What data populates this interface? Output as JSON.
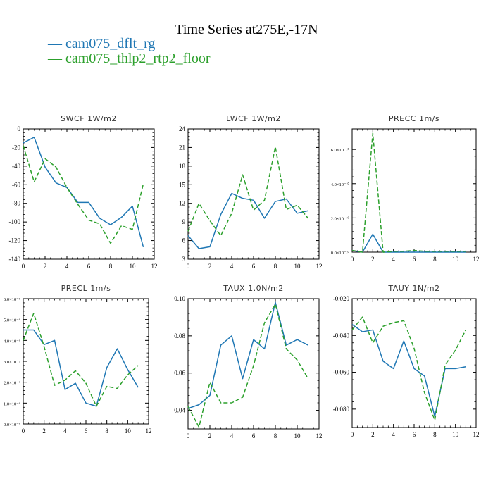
{
  "figure": {
    "title": "Time Series at275E,-17N",
    "legend": [
      {
        "label": "— cam075_dflt_rg",
        "color": "#1f77b4"
      },
      {
        "label": "— cam075_thlp2_rtp2_floor",
        "color": "#2ca02c"
      }
    ]
  },
  "chart_data": [
    {
      "type": "line",
      "title": "SWCF",
      "units": "1W/m2",
      "x": [
        0,
        1,
        2,
        3,
        4,
        5,
        6,
        7,
        8,
        9,
        10,
        11
      ],
      "xlim": [
        0,
        12
      ],
      "xticks": [
        0,
        2,
        4,
        6,
        8,
        10,
        12
      ],
      "ylim": [
        -140,
        0
      ],
      "yticks": [
        0,
        -20,
        -40,
        -60,
        -80,
        -100,
        -120,
        -140
      ],
      "ytick_labels": [
        "0",
        "-20",
        "-40",
        "-60",
        "-80",
        "-100",
        "-120",
        "-140"
      ],
      "series": [
        {
          "name": "cam075_dflt_rg",
          "color": "#1f77b4",
          "dash": "",
          "values": [
            -15,
            -9,
            -41,
            -58,
            -63,
            -79,
            -79,
            -96,
            -103,
            -95,
            -83,
            -127
          ]
        },
        {
          "name": "cam075_thlp2_rtp2_floor",
          "color": "#2ca02c",
          "dash": "6,3",
          "values": [
            -18,
            -57,
            -32,
            -41,
            -63,
            -81,
            -98,
            -102,
            -123,
            -104,
            -108,
            -59
          ]
        }
      ]
    },
    {
      "type": "line",
      "title": "LWCF",
      "units": "1W/m2",
      "x": [
        0,
        1,
        2,
        3,
        4,
        5,
        6,
        7,
        8,
        9,
        10,
        11
      ],
      "xlim": [
        0,
        12
      ],
      "xticks": [
        0,
        2,
        4,
        6,
        8,
        10,
        12
      ],
      "ylim": [
        3,
        24
      ],
      "yticks": [
        3,
        6,
        9,
        12,
        15,
        18,
        21,
        24
      ],
      "ytick_labels": [
        "3",
        "6",
        "9",
        "12",
        "15",
        "18",
        "21",
        "24"
      ],
      "series": [
        {
          "name": "cam075_dflt_rg",
          "color": "#1f77b4",
          "dash": "",
          "values": [
            6.8,
            4.7,
            5.0,
            10.2,
            13.6,
            12.8,
            12.5,
            9.6,
            12.3,
            12.7,
            10.4,
            10.8
          ]
        },
        {
          "name": "cam075_thlp2_rtp2_floor",
          "color": "#2ca02c",
          "dash": "6,3",
          "values": [
            7.5,
            12.0,
            9.2,
            6.8,
            10.4,
            16.6,
            10.9,
            12.5,
            21.1,
            11.0,
            11.7,
            9.6
          ]
        }
      ]
    },
    {
      "type": "line",
      "title": "PRECC",
      "units": "1m/s",
      "x": [
        0,
        1,
        2,
        3,
        4,
        5,
        6,
        7,
        8,
        9,
        10,
        11
      ],
      "xlim": [
        0,
        12
      ],
      "xticks": [
        0,
        2,
        4,
        6,
        8,
        10,
        12
      ],
      "ylim": [
        0,
        7.2e-10
      ],
      "yticks": [
        0,
        2e-10,
        4e-10,
        6e-10
      ],
      "ytick_labels": [
        "0.0×10⁻¹⁰",
        "2.0×10⁻¹⁰",
        "4.0×10⁻¹⁰",
        "6.0×10⁻¹⁰"
      ],
      "series": [
        {
          "name": "cam075_dflt_rg",
          "color": "#1f77b4",
          "dash": "",
          "values": [
            1e-11,
            0,
            1.05e-10,
            0,
            0,
            0,
            0,
            0,
            0,
            0,
            0,
            0
          ]
        },
        {
          "name": "cam075_thlp2_rtp2_floor",
          "color": "#2ca02c",
          "dash": "6,3",
          "values": [
            1e-11,
            0,
            6.95e-10,
            0,
            5e-12,
            5e-12,
            1e-11,
            5e-12,
            5e-12,
            5e-12,
            5e-12,
            5e-12
          ]
        }
      ]
    },
    {
      "type": "line",
      "title": "PRECL",
      "units": "1m/s",
      "x": [
        0,
        1,
        2,
        3,
        4,
        5,
        6,
        7,
        8,
        9,
        10,
        11
      ],
      "xlim": [
        0,
        12
      ],
      "xticks": [
        0,
        2,
        4,
        6,
        8,
        10,
        12
      ],
      "ylim": [
        0,
        6e-09
      ],
      "yticks": [
        0,
        1e-09,
        2e-09,
        3e-09,
        4e-09,
        5e-09,
        6e-09
      ],
      "ytick_labels": [
        "0.0×10⁻⁹",
        "1.0×10⁻⁹",
        "2.0×10⁻⁹",
        "3.0×10⁻⁹",
        "4.0×10⁻⁹",
        "5.0×10⁻⁹",
        "6.0×10⁻⁹"
      ],
      "series": [
        {
          "name": "cam075_dflt_rg",
          "color": "#1f77b4",
          "dash": "",
          "values": [
            4.5e-09,
            4.5e-09,
            3.8e-09,
            4e-09,
            1.65e-09,
            1.95e-09,
            1e-09,
            8.5e-10,
            2.7e-09,
            3.6e-09,
            2.6e-09,
            1.75e-09
          ]
        },
        {
          "name": "cam075_thlp2_rtp2_floor",
          "color": "#2ca02c",
          "dash": "6,3",
          "values": [
            4e-09,
            5.3e-09,
            3.7e-09,
            1.85e-09,
            2.1e-09,
            2.55e-09,
            1.95e-09,
            8.5e-10,
            1.8e-09,
            1.7e-09,
            2.35e-09,
            2.8e-09
          ]
        }
      ]
    },
    {
      "type": "line",
      "title": "TAUX",
      "units": "1.0N/m2",
      "x": [
        0,
        1,
        2,
        3,
        4,
        5,
        6,
        7,
        8,
        9,
        10,
        11
      ],
      "xlim": [
        0,
        12
      ],
      "xticks": [
        0,
        2,
        4,
        6,
        8,
        10,
        12
      ],
      "ylim": [
        0.03,
        0.1
      ],
      "yticks": [
        0.04,
        0.06,
        0.08,
        0.1
      ],
      "ytick_labels": [
        "0.04",
        "0.06",
        "0.08",
        "0.10"
      ],
      "series": [
        {
          "name": "cam075_dflt_rg",
          "color": "#1f77b4",
          "dash": "",
          "values": [
            0.041,
            0.043,
            0.048,
            0.075,
            0.08,
            0.057,
            0.078,
            0.073,
            0.098,
            0.075,
            0.078,
            0.075
          ]
        },
        {
          "name": "cam075_thlp2_rtp2_floor",
          "color": "#2ca02c",
          "dash": "6,3",
          "values": [
            0.042,
            0.031,
            0.055,
            0.044,
            0.044,
            0.047,
            0.064,
            0.087,
            0.097,
            0.073,
            0.067,
            0.057
          ]
        }
      ]
    },
    {
      "type": "line",
      "title": "TAUY",
      "units": "1N/m2",
      "x": [
        0,
        1,
        2,
        3,
        4,
        5,
        6,
        7,
        8,
        9,
        10,
        11
      ],
      "xlim": [
        0,
        12
      ],
      "xticks": [
        0,
        2,
        4,
        6,
        8,
        10,
        12
      ],
      "ylim": [
        -0.09,
        -0.02
      ],
      "yticks": [
        -0.02,
        -0.04,
        -0.06,
        -0.08
      ],
      "ytick_labels": [
        "-0.020",
        "-0.040",
        "-0.060",
        "-0.080"
      ],
      "series": [
        {
          "name": "cam075_dflt_rg",
          "color": "#1f77b4",
          "dash": "",
          "values": [
            -0.034,
            -0.038,
            -0.037,
            -0.054,
            -0.058,
            -0.043,
            -0.058,
            -0.062,
            -0.084,
            -0.058,
            -0.058,
            -0.057
          ]
        },
        {
          "name": "cam075_thlp2_rtp2_floor",
          "color": "#2ca02c",
          "dash": "6,3",
          "values": [
            -0.037,
            -0.03,
            -0.044,
            -0.035,
            -0.033,
            -0.032,
            -0.047,
            -0.071,
            -0.086,
            -0.056,
            -0.048,
            -0.037
          ]
        }
      ]
    }
  ]
}
